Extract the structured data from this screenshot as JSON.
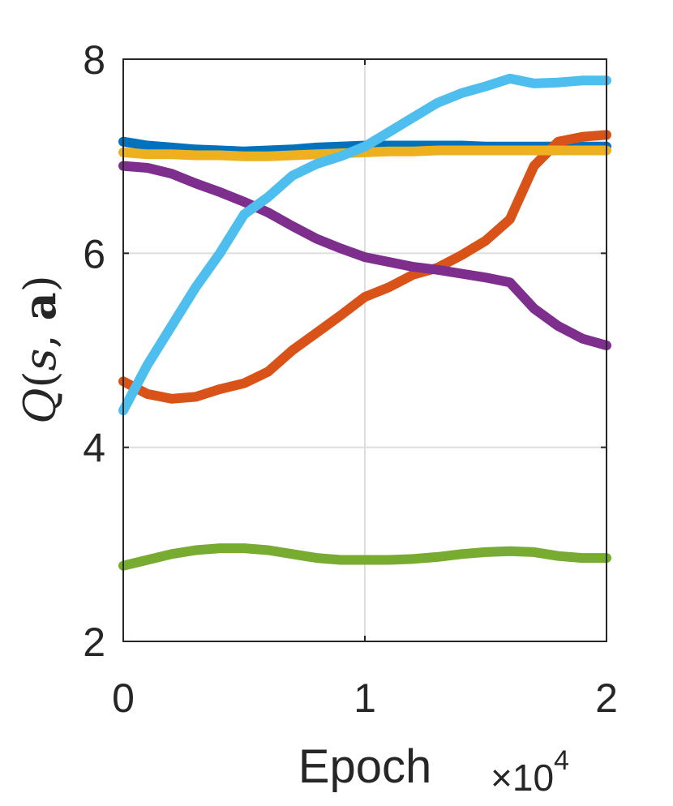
{
  "chart_data": {
    "type": "line",
    "title": "",
    "xlabel": "Epoch",
    "ylabel": "Q(s, a)",
    "ylabel_parts": {
      "q": "Q",
      "open": "(",
      "s": "s",
      "comma": ", ",
      "a": "a",
      "close": ")"
    },
    "x_multiplier": {
      "prefix": "×10",
      "exponent": "4"
    },
    "xlim": [
      0,
      2
    ],
    "ylim": [
      2,
      8
    ],
    "xticks": [
      0,
      1,
      2
    ],
    "xtick_labels": [
      "0",
      "1",
      "2"
    ],
    "yticks": [
      2,
      4,
      6,
      8
    ],
    "ytick_labels": [
      "2",
      "4",
      "6",
      "8"
    ],
    "grid": true,
    "x": [
      0,
      0.1,
      0.2,
      0.3,
      0.4,
      0.5,
      0.6,
      0.7,
      0.8,
      0.9,
      1.0,
      1.1,
      1.2,
      1.3,
      1.4,
      1.5,
      1.6,
      1.7,
      1.8,
      1.9,
      2.0
    ],
    "series": [
      {
        "color": "#0072BD",
        "values": [
          7.15,
          7.11,
          7.09,
          7.07,
          7.06,
          7.05,
          7.06,
          7.07,
          7.09,
          7.1,
          7.11,
          7.11,
          7.11,
          7.11,
          7.11,
          7.1,
          7.1,
          7.1,
          7.1,
          7.1,
          7.1
        ]
      },
      {
        "color": "#D95319",
        "values": [
          4.68,
          4.55,
          4.5,
          4.52,
          4.6,
          4.66,
          4.78,
          5.0,
          5.18,
          5.36,
          5.55,
          5.65,
          5.78,
          5.85,
          5.98,
          6.13,
          6.35,
          6.9,
          7.15,
          7.2,
          7.22
        ]
      },
      {
        "color": "#EDB120",
        "values": [
          7.04,
          7.02,
          7.02,
          7.01,
          7.01,
          7.0,
          7.0,
          7.01,
          7.02,
          7.03,
          7.04,
          7.05,
          7.05,
          7.06,
          7.06,
          7.06,
          7.06,
          7.06,
          7.06,
          7.06,
          7.06
        ]
      },
      {
        "color": "#7E2F8E",
        "values": [
          6.9,
          6.88,
          6.82,
          6.72,
          6.63,
          6.53,
          6.42,
          6.28,
          6.15,
          6.05,
          5.96,
          5.91,
          5.86,
          5.83,
          5.79,
          5.75,
          5.7,
          5.43,
          5.25,
          5.12,
          5.05
        ]
      },
      {
        "color": "#77AC30",
        "values": [
          2.78,
          2.84,
          2.9,
          2.94,
          2.96,
          2.96,
          2.94,
          2.9,
          2.86,
          2.84,
          2.84,
          2.84,
          2.85,
          2.87,
          2.9,
          2.92,
          2.93,
          2.92,
          2.88,
          2.86,
          2.86
        ]
      },
      {
        "color": "#4DBEEE",
        "values": [
          4.38,
          4.85,
          5.25,
          5.65,
          6.0,
          6.4,
          6.58,
          6.8,
          6.92,
          7.0,
          7.1,
          7.25,
          7.4,
          7.55,
          7.65,
          7.72,
          7.8,
          7.75,
          7.76,
          7.78,
          7.78
        ]
      }
    ]
  }
}
